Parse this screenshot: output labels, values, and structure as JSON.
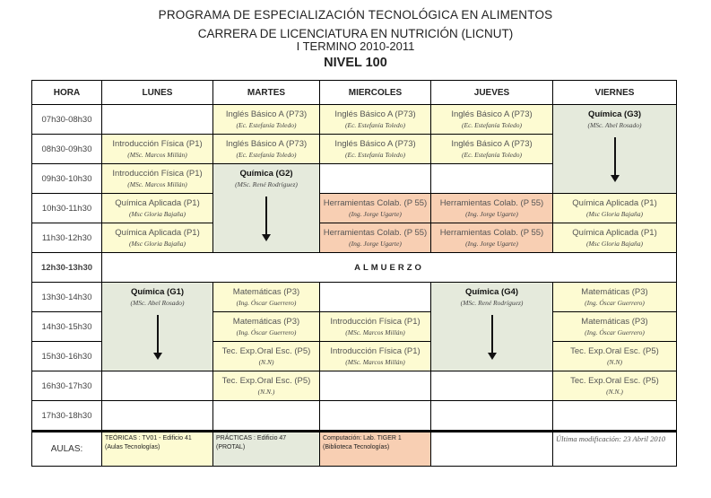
{
  "header": {
    "line1": "PROGRAMA DE ESPECIALIZACIÓN TECNOLÓGICA EN ALIMENTOS",
    "line2": "CARRERA DE LICENCIATURA EN NUTRICIÓN (LICNUT)",
    "line3": "I TERMINO 2010-2011",
    "line4": "NIVEL 100"
  },
  "colors": {
    "teoricas": "#fdfbd2",
    "practicas": "#e5eadc",
    "computacion": "#f8cfb3"
  },
  "columns": [
    "HORA",
    "LUNES",
    "MARTES",
    "MIERCOLES",
    "JUEVES",
    "VIERNES"
  ],
  "rows": [
    {
      "hora": "07h30-08h30",
      "cells": [
        {
          "t": "e"
        },
        {
          "t": "y",
          "subject": "Inglés Básico A (P73)",
          "teacher": "(Ec. Estefanía Toledo)"
        },
        {
          "t": "y",
          "subject": "Inglés Básico A (P73)",
          "teacher": "(Ec. Estefanía Toledo)"
        },
        {
          "t": "y",
          "subject": "Inglés Básico A (P73)",
          "teacher": "(Ec. Estefanía Toledo)"
        },
        {
          "t": "chem",
          "span": 3,
          "subject": "Química (G3)",
          "teacher": "(MSc. Abel Rosado)"
        }
      ]
    },
    {
      "hora": "08h30-09h30",
      "cells": [
        {
          "t": "y",
          "subject": "Introducción Física (P1)",
          "teacher": "(MSc. Marcos Millán)"
        },
        {
          "t": "y",
          "subject": "Inglés Básico A (P73)",
          "teacher": "(Ec. Estefanía Toledo)"
        },
        {
          "t": "y",
          "subject": "Inglés Básico A (P73)",
          "teacher": "(Ec. Estefanía Toledo)"
        },
        {
          "t": "y",
          "subject": "Inglés Básico A (P73)",
          "teacher": "(Ec. Estefanía Toledo)"
        },
        null
      ]
    },
    {
      "hora": "09h30-10h30",
      "cells": [
        {
          "t": "y",
          "subject": "Introducción Física (P1)",
          "teacher": "(MSc. Marcos Millán)"
        },
        {
          "t": "chem",
          "span": 3,
          "subject": "Química (G2)",
          "teacher": "(MSc. René Rodríguez)"
        },
        {
          "t": "e"
        },
        {
          "t": "e"
        },
        null
      ]
    },
    {
      "hora": "10h30-11h30",
      "cells": [
        {
          "t": "y",
          "subject": "Química Aplicada (P1)",
          "teacher": "(Msc Gloria Bajaña)"
        },
        null,
        {
          "t": "o",
          "subject": "Herramientas Colab. (P 55)",
          "teacher": "(Ing. Jorge Ugarte)"
        },
        {
          "t": "o",
          "subject": "Herramientas Colab. (P 55)",
          "teacher": "(Ing. Jorge Ugarte)"
        },
        {
          "t": "y",
          "subject": "Química Aplicada (P1)",
          "teacher": "(Msc Gloria Bajaña)"
        }
      ]
    },
    {
      "hora": "11h30-12h30",
      "cells": [
        {
          "t": "y",
          "subject": "Química Aplicada (P1)",
          "teacher": "(Msc Gloria Bajaña)"
        },
        null,
        {
          "t": "o",
          "subject": "Herramientas Colab. (P 55)",
          "teacher": "(Ing. Jorge Ugarte)"
        },
        {
          "t": "o",
          "subject": "Herramientas Colab. (P 55)",
          "teacher": "(Ing. Jorge Ugarte)"
        },
        {
          "t": "y",
          "subject": "Química Aplicada (P1)",
          "teacher": "(Msc Gloria Bajaña)"
        }
      ]
    },
    {
      "hora": "12h30-13h30",
      "lunch": "ALMUERZO"
    },
    {
      "hora": "13h30-14h30",
      "cells": [
        {
          "t": "chem",
          "span": 3,
          "subject": "Química (G1)",
          "teacher": "(MSc. Abel Rosado)"
        },
        {
          "t": "y",
          "subject": "Matemáticas (P3)",
          "teacher": "(Ing. Óscar Guerrero)"
        },
        {
          "t": "e"
        },
        {
          "t": "chem",
          "span": 3,
          "subject": "Química (G4)",
          "teacher": "(MSc. René Rodríguez)"
        },
        {
          "t": "y",
          "subject": "Matemáticas (P3)",
          "teacher": "(Ing. Óscar Guerrero)"
        }
      ]
    },
    {
      "hora": "14h30-15h30",
      "cells": [
        null,
        {
          "t": "y",
          "subject": "Matemáticas (P3)",
          "teacher": "(Ing. Óscar Guerrero)"
        },
        {
          "t": "y",
          "subject": "Introducción Física (P1)",
          "teacher": "(MSc. Marcos Millán)"
        },
        null,
        {
          "t": "y",
          "subject": "Matemáticas (P3)",
          "teacher": "(Ing. Óscar Guerrero)"
        }
      ]
    },
    {
      "hora": "15h30-16h30",
      "cells": [
        null,
        {
          "t": "y",
          "subject": "Tec. Exp.Oral Esc. (P5)",
          "teacher": "(N.N)"
        },
        {
          "t": "y",
          "subject": "Introducción Física (P1)",
          "teacher": "(MSc. Marcos Millán)"
        },
        null,
        {
          "t": "y",
          "subject": "Tec. Exp.Oral Esc. (P5)",
          "teacher": "(N.N)"
        }
      ]
    },
    {
      "hora": "16h30-17h30",
      "cells": [
        {
          "t": "e"
        },
        {
          "t": "y",
          "subject": "Tec. Exp.Oral Esc. (P5)",
          "teacher": "(N.N.)"
        },
        {
          "t": "e"
        },
        {
          "t": "e"
        },
        {
          "t": "y",
          "subject": "Tec. Exp.Oral Esc. (P5)",
          "teacher": "(N.N.)"
        }
      ]
    },
    {
      "hora": "17h30-18h30",
      "cells": [
        {
          "t": "e"
        },
        {
          "t": "e"
        },
        {
          "t": "e"
        },
        {
          "t": "e"
        },
        {
          "t": "e"
        }
      ]
    }
  ],
  "aulas": {
    "label": "AULAS:",
    "teoricas": "TEÓRICAS : TV01 - Edificio 41 (Aulas Tecnologías)",
    "practicas": "PRÁCTICAS : Edificio 47 (PROTAL)",
    "computacion": "Computación: Lab. TIGER 1 (Biblioteca Tecnologías)",
    "last_modified": "Última modificación: 23 Abril 2010"
  }
}
